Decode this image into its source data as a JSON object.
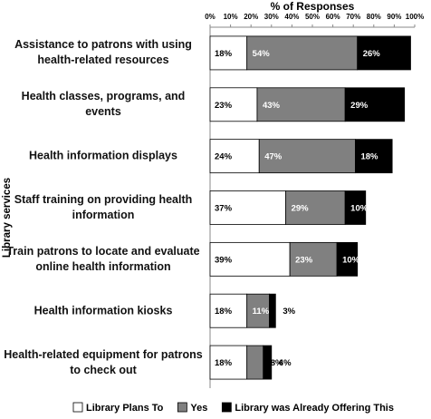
{
  "chart_data": {
    "type": "stacked-bar-horizontal",
    "x_label": "% of Responses",
    "y_label": "Library services",
    "categories": [
      "Assistance to patrons with using\nhealth-related resources",
      "Health classes, programs, and events",
      "Health information displays",
      "Staff training on providing health\ninformation",
      "Train patrons to locate and evaluate\nonline health information",
      "Health information kiosks",
      "Health-related equipment for patrons\nto check out"
    ],
    "series": [
      {
        "name": "Library Plans To",
        "color": "#ffffff",
        "values": [
          18,
          23,
          24,
          37,
          39,
          18,
          18
        ],
        "value_labels": [
          "18%",
          "23%",
          "24%",
          "37%",
          "39%",
          "18%",
          "18%"
        ]
      },
      {
        "name": "Yes",
        "color": "#808080",
        "values": [
          54,
          43,
          47,
          29,
          23,
          11,
          8
        ],
        "value_labels": [
          "54%",
          "43%",
          "47%",
          "29%",
          "23%",
          "11%",
          "8%"
        ]
      },
      {
        "name": "Library was Already Offering This",
        "color": "#000000",
        "values": [
          26,
          29,
          18,
          10,
          10,
          3,
          4
        ],
        "value_labels": [
          "26%",
          "29%",
          "18%",
          "10%",
          "10%",
          "3%",
          "4%"
        ]
      }
    ],
    "xlim": [
      0,
      100
    ],
    "xticks": [
      {
        "value": 0,
        "label": "0%"
      },
      {
        "value": 10,
        "label": "10%"
      },
      {
        "value": 20,
        "label": "20%"
      },
      {
        "value": 30,
        "label": "30%"
      },
      {
        "value": 40,
        "label": "40%"
      },
      {
        "value": 50,
        "label": "50%"
      },
      {
        "value": 60,
        "label": "60%"
      },
      {
        "value": 70,
        "label": "70%"
      },
      {
        "value": 80,
        "label": "80%"
      },
      {
        "value": 90,
        "label": "90%"
      },
      {
        "value": 100,
        "label": "100%"
      }
    ],
    "legend": "bottom"
  }
}
